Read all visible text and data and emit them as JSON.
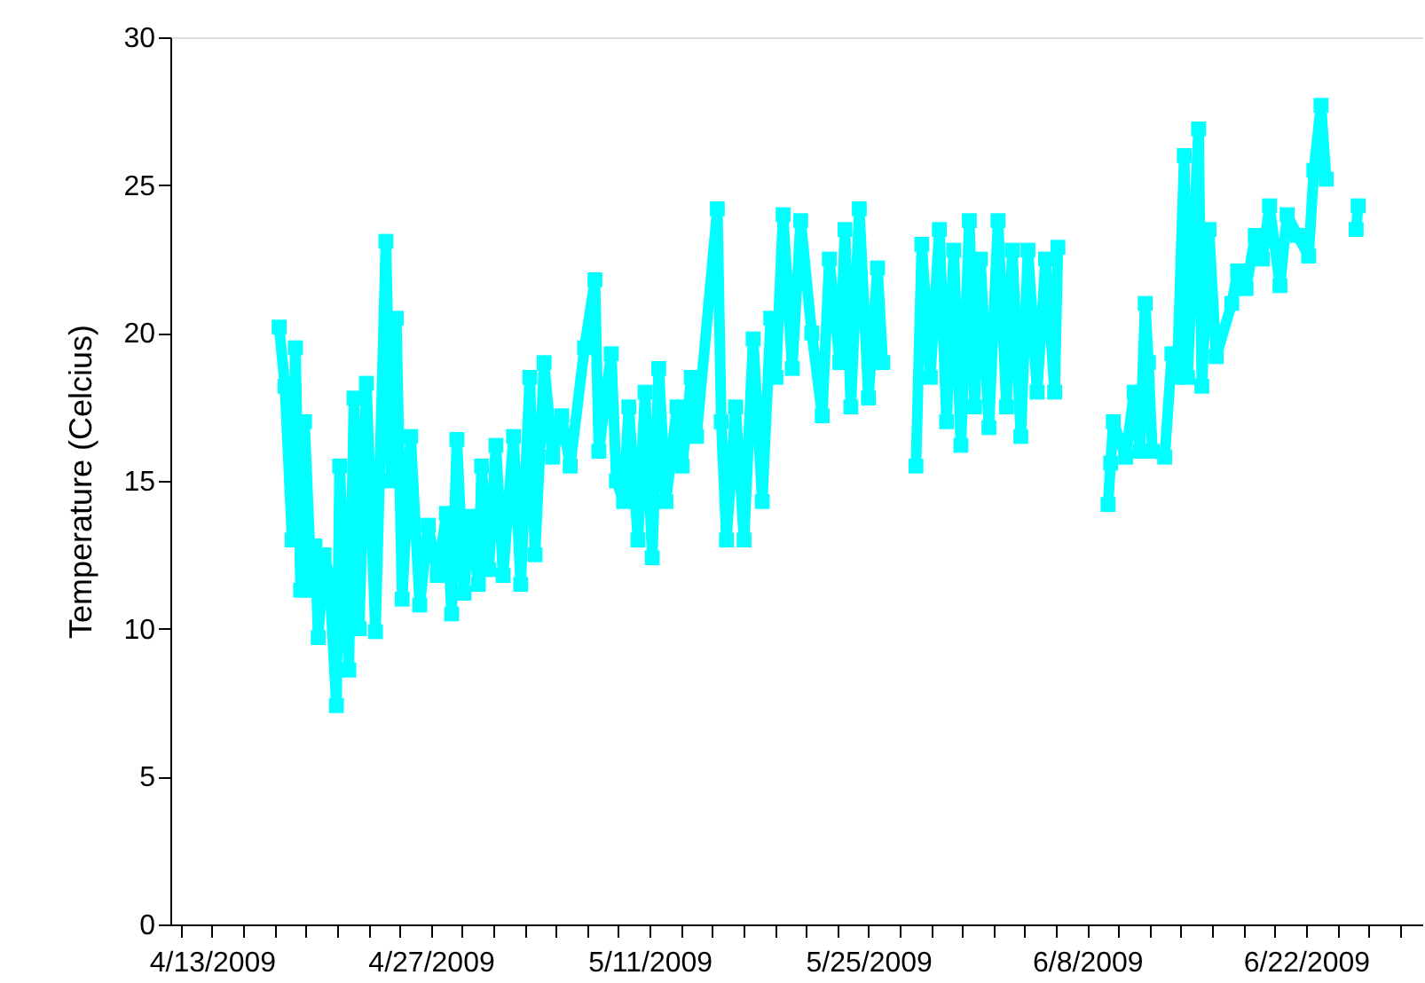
{
  "chart_data": {
    "type": "line",
    "ylabel": "Temperature (Celcius)",
    "marker": "square",
    "line_style": "solid",
    "grid": false,
    "xlim": [
      "2009-04-10T08:00",
      "2009-06-29T12:00"
    ],
    "xticks": [
      {
        "value": "2009-04-11",
        "label": null
      },
      {
        "value": "2009-04-13",
        "label": "4/13/2009"
      },
      {
        "value": "2009-04-15",
        "label": null
      },
      {
        "value": "2009-04-17",
        "label": null
      },
      {
        "value": "2009-04-19",
        "label": null
      },
      {
        "value": "2009-04-21",
        "label": null
      },
      {
        "value": "2009-04-23",
        "label": null
      },
      {
        "value": "2009-04-25",
        "label": null
      },
      {
        "value": "2009-04-27",
        "label": "4/27/2009"
      },
      {
        "value": "2009-04-29",
        "label": null
      },
      {
        "value": "2009-05-01",
        "label": null
      },
      {
        "value": "2009-05-03",
        "label": null
      },
      {
        "value": "2009-05-05",
        "label": null
      },
      {
        "value": "2009-05-07",
        "label": null
      },
      {
        "value": "2009-05-09",
        "label": null
      },
      {
        "value": "2009-05-11",
        "label": "5/11/2009"
      },
      {
        "value": "2009-05-13",
        "label": null
      },
      {
        "value": "2009-05-15",
        "label": null
      },
      {
        "value": "2009-05-17",
        "label": null
      },
      {
        "value": "2009-05-19",
        "label": null
      },
      {
        "value": "2009-05-21",
        "label": null
      },
      {
        "value": "2009-05-23",
        "label": null
      },
      {
        "value": "2009-05-25",
        "label": "5/25/2009"
      },
      {
        "value": "2009-05-27",
        "label": null
      },
      {
        "value": "2009-05-29",
        "label": null
      },
      {
        "value": "2009-05-31",
        "label": null
      },
      {
        "value": "2009-06-02",
        "label": null
      },
      {
        "value": "2009-06-04",
        "label": null
      },
      {
        "value": "2009-06-06",
        "label": null
      },
      {
        "value": "2009-06-08",
        "label": "6/8/2009"
      },
      {
        "value": "2009-06-10",
        "label": null
      },
      {
        "value": "2009-06-12",
        "label": null
      },
      {
        "value": "2009-06-14",
        "label": null
      },
      {
        "value": "2009-06-16",
        "label": null
      },
      {
        "value": "2009-06-18",
        "label": null
      },
      {
        "value": "2009-06-20",
        "label": null
      },
      {
        "value": "2009-06-22",
        "label": "6/22/2009"
      },
      {
        "value": "2009-06-24",
        "label": null
      },
      {
        "value": "2009-06-26",
        "label": null
      },
      {
        "value": "2009-06-28",
        "label": null
      }
    ],
    "ylim": [
      0,
      30
    ],
    "yticks": [
      0,
      5,
      10,
      15,
      20,
      25,
      30
    ],
    "x": [
      "2009-04-17T07:00",
      "2009-04-17T16:00",
      "2009-04-18T03:00",
      "2009-04-18T08:00",
      "2009-04-18T16:00",
      "2009-04-18T22:00",
      "2009-04-19T09:00",
      "2009-04-19T14:00",
      "2009-04-19T19:00",
      "2009-04-20T04:00",
      "2009-04-20T12:00",
      "2009-04-20T23:00",
      "2009-04-21T04:00",
      "2009-04-21T18:00",
      "2009-04-22T02:00",
      "2009-04-22T10:00",
      "2009-04-22T21:00",
      "2009-04-23T11:00",
      "2009-04-24T03:00",
      "2009-04-24T11:00",
      "2009-04-24T19:00",
      "2009-04-25T04:00",
      "2009-04-25T17:00",
      "2009-04-26T07:00",
      "2009-04-26T20:00",
      "2009-04-27T10:00",
      "2009-04-28T00:00",
      "2009-04-28T08:00",
      "2009-04-28T16:00",
      "2009-04-29T03:00",
      "2009-04-29T11:00",
      "2009-04-30T01:00",
      "2009-04-30T06:00",
      "2009-04-30T17:00",
      "2009-05-01T04:00",
      "2009-05-01T15:00",
      "2009-05-02T07:00",
      "2009-05-02T18:00",
      "2009-05-03T08:00",
      "2009-05-03T16:00",
      "2009-05-04T06:00",
      "2009-05-04T19:00",
      "2009-05-05T09:00",
      "2009-05-05T22:00",
      "2009-05-06T20:00",
      "2009-05-07T12:00",
      "2009-05-07T18:00",
      "2009-05-08T13:00",
      "2009-05-08T21:00",
      "2009-05-09T08:00",
      "2009-05-09T16:00",
      "2009-05-10T06:00",
      "2009-05-10T17:00",
      "2009-05-11T04:00",
      "2009-05-11T14:00",
      "2009-05-12T01:00",
      "2009-05-12T18:00",
      "2009-05-13T02:00",
      "2009-05-13T16:00",
      "2009-05-14T00:00",
      "2009-05-15T08:00",
      "2009-05-15T14:00",
      "2009-05-15T22:00",
      "2009-05-16T12:00",
      "2009-05-17T01:00",
      "2009-05-17T15:00",
      "2009-05-18T05:00",
      "2009-05-18T18:00",
      "2009-05-19T02:00",
      "2009-05-19T13:00",
      "2009-05-20T03:00",
      "2009-05-20T16:00",
      "2009-05-21T09:00",
      "2009-05-22T01:00",
      "2009-05-22T12:00",
      "2009-05-23T04:00",
      "2009-05-23T12:00",
      "2009-05-23T21:00",
      "2009-05-24T10:00",
      "2009-05-25T00:00",
      "2009-05-25T14:00",
      "2009-05-25T22:00",
      "2009-05-27T00:00",
      "2009-05-28T01:00",
      "2009-05-28T10:00",
      "2009-05-28T23:00",
      "2009-05-29T13:00",
      "2009-05-30T00:00",
      "2009-05-30T11:00",
      "2009-05-30T22:00",
      "2009-05-31T11:00",
      "2009-05-31T19:00",
      "2009-06-01T04:00",
      "2009-06-01T17:00",
      "2009-06-02T07:00",
      "2009-06-02T20:00",
      "2009-06-03T05:00",
      "2009-06-03T18:00",
      "2009-06-04T05:00",
      "2009-06-04T19:00",
      "2009-06-05T08:00",
      "2009-06-05T22:00",
      "2009-06-06T03:00",
      "2009-06-07T12:00",
      "2009-06-09T08:00",
      "2009-06-09T12:00",
      "2009-06-09T16:00",
      "2009-06-10T11:00",
      "2009-06-11T00:00",
      "2009-06-11T09:00",
      "2009-06-11T17:00",
      "2009-06-11T22:00",
      "2009-06-12T04:00",
      "2009-06-12T23:00",
      "2009-06-13T10:00",
      "2009-06-13T18:00",
      "2009-06-14T05:00",
      "2009-06-14T10:00",
      "2009-06-15T03:00",
      "2009-06-15T08:00",
      "2009-06-15T19:00",
      "2009-06-16T06:00",
      "2009-06-17T06:00",
      "2009-06-17T15:00",
      "2009-06-18T04:00",
      "2009-06-18T18:00",
      "2009-06-19T05:00",
      "2009-06-19T16:00",
      "2009-06-20T08:00",
      "2009-06-20T19:00",
      "2009-06-21T11:00",
      "2009-06-22T04:00",
      "2009-06-22T12:00",
      "2009-06-22T23:00",
      "2009-06-23T07:00",
      "2009-06-24T12:00",
      "2009-06-25T05:00",
      "2009-06-25T08:00"
    ],
    "series": [
      {
        "color": "#00ffff",
        "values": [
          20.2,
          18.2,
          13.0,
          19.5,
          11.3,
          17,
          11.3,
          12.8,
          9.7,
          12.5,
          11.8,
          7.4,
          15.5,
          8.6,
          17.8,
          10,
          18.3,
          9.9,
          23.1,
          15,
          20.5,
          11,
          16.5,
          10.8,
          13.5,
          11.8,
          13.9,
          10.5,
          16.4,
          11.2,
          13.8,
          11.5,
          15.5,
          12,
          16.2,
          11.8,
          16.5,
          11.5,
          18.5,
          12.5,
          19,
          15.8,
          17.2,
          15.5,
          19.5,
          21.8,
          16,
          19.3,
          15,
          14.3,
          17.5,
          13,
          18,
          12.4,
          18.8,
          14.3,
          17.5,
          15.5,
          18.5,
          16.5,
          24.2,
          17,
          13,
          17.5,
          13,
          19.8,
          14.3,
          20.5,
          18.5,
          24,
          18.8,
          23.8,
          20,
          17.2,
          22.5,
          19,
          23.5,
          17.5,
          24.2,
          17.8,
          22.2,
          19,
          null,
          15.5,
          23,
          18.5,
          23.5,
          17,
          22.8,
          16.2,
          23.8,
          17.5,
          22.5,
          16.8,
          23.8,
          17.5,
          22.8,
          16.5,
          22.8,
          18,
          22.5,
          18,
          22.9,
          null,
          14.2,
          15.6,
          17,
          15.8,
          18,
          16,
          21,
          19,
          16,
          15.8,
          19.3,
          18.5,
          26,
          18.5,
          26.9,
          18.2,
          23.5,
          19.2,
          21,
          22.1,
          21.5,
          23.3,
          22.5,
          24.3,
          21.6,
          24,
          23.3,
          22.6,
          25.5,
          27.7,
          25.2,
          null,
          23.5,
          24.3
        ]
      }
    ]
  }
}
